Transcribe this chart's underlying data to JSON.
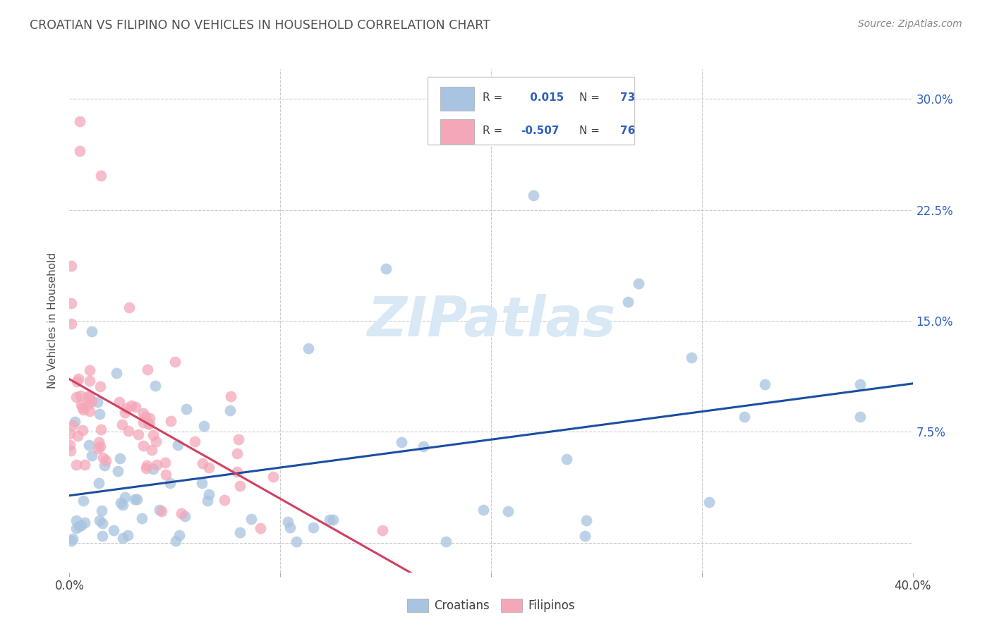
{
  "title": "CROATIAN VS FILIPINO NO VEHICLES IN HOUSEHOLD CORRELATION CHART",
  "source": "Source: ZipAtlas.com",
  "ylabel": "No Vehicles in Household",
  "xlabel_croatian": "Croatians",
  "xlabel_filipino": "Filipinos",
  "watermark": "ZIPatlas",
  "xlim": [
    0.0,
    0.4
  ],
  "ylim": [
    -0.02,
    0.32
  ],
  "xticks": [
    0.0,
    0.1,
    0.2,
    0.3,
    0.4
  ],
  "xticklabels": [
    "0.0%",
    "",
    "",
    "",
    "40.0%"
  ],
  "yticks": [
    0.0,
    0.075,
    0.15,
    0.225,
    0.3
  ],
  "yticklabels": [
    "",
    "7.5%",
    "15.0%",
    "22.5%",
    "30.0%"
  ],
  "right_yticklabels": [
    "",
    "7.5%",
    "15.0%",
    "22.5%",
    "30.0%"
  ],
  "croatian_R": 0.015,
  "croatian_N": 73,
  "filipino_R": -0.507,
  "filipino_N": 76,
  "blue_color": "#a8c4e0",
  "pink_color": "#f4a7b9",
  "blue_line_color": "#1a4fa0",
  "pink_line_color": "#d04060",
  "legend_text_color": "#3060c0",
  "grid_color": "#cccccc",
  "title_color": "#505050",
  "background_color": "#ffffff",
  "watermark_color": "#d8e8f5"
}
